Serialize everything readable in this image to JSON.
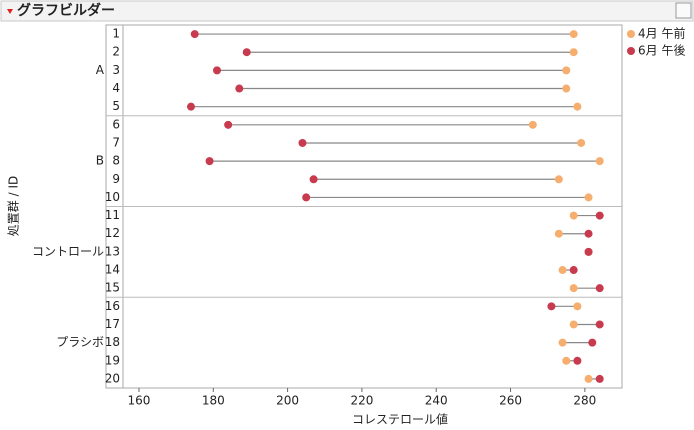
{
  "header": {
    "title": "グラフビルダー"
  },
  "chart_data": {
    "type": "dumbbell",
    "x_label": "コレステロール値",
    "y_label": "処置群 / ID",
    "groups": [
      {
        "name": "A",
        "categories": [
          "1",
          "2",
          "3",
          "4",
          "5"
        ]
      },
      {
        "name": "B",
        "categories": [
          "6",
          "7",
          "8",
          "9",
          "10"
        ]
      },
      {
        "name": "コントロール",
        "categories": [
          "11",
          "12",
          "13",
          "14",
          "15"
        ]
      },
      {
        "name": "プラシボ",
        "categories": [
          "16",
          "17",
          "18",
          "19",
          "20"
        ]
      }
    ],
    "series": [
      {
        "name": "4月 午前",
        "color": "#f6ae6e",
        "values": [
          277,
          277,
          275,
          275,
          278,
          266,
          279,
          284,
          273,
          281,
          277,
          273,
          281,
          274,
          277,
          278,
          277,
          274,
          275,
          281
        ]
      },
      {
        "name": "6月 午後",
        "color": "#c83a4e",
        "values": [
          175,
          189,
          181,
          187,
          174,
          184,
          204,
          179,
          207,
          205,
          284,
          281,
          281,
          277,
          284,
          271,
          284,
          282,
          278,
          284
        ]
      }
    ],
    "xlim": [
      155.7,
      290
    ],
    "xticks": [
      160,
      180,
      200,
      220,
      240,
      260,
      280
    ],
    "connector_color": "#888888"
  }
}
